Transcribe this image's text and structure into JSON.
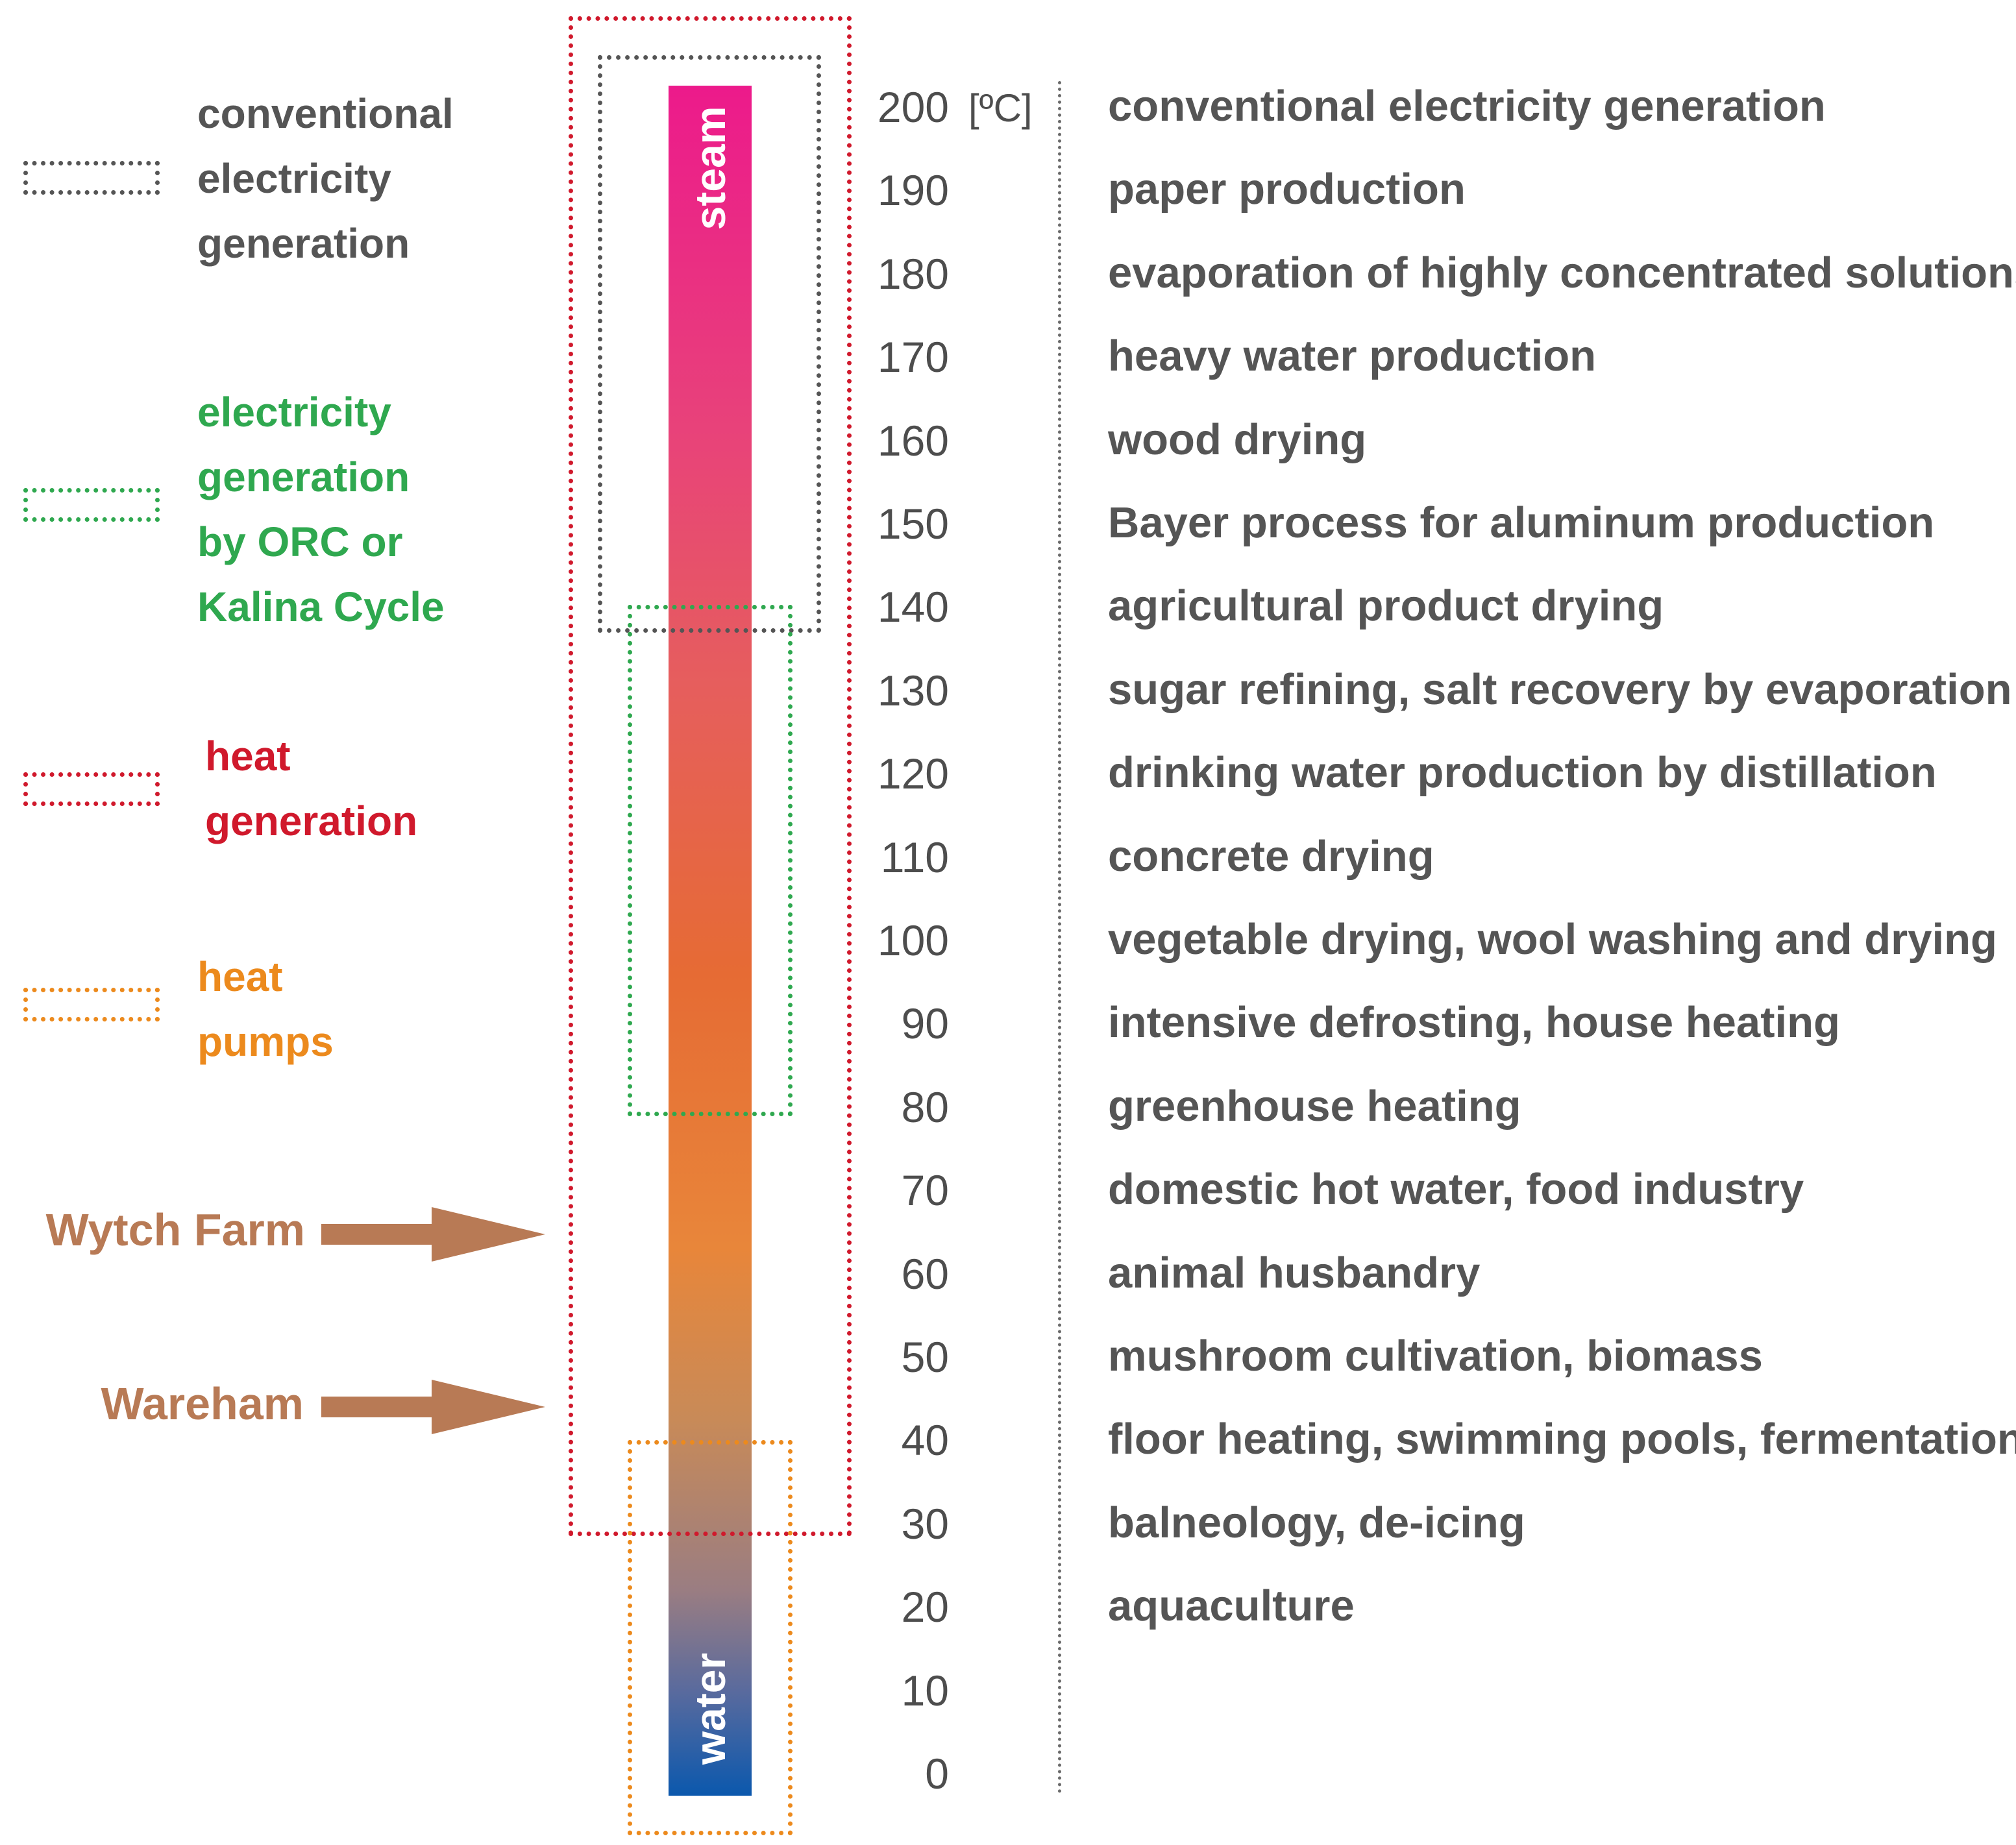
{
  "colors": {
    "conventional": "#555555",
    "orc": "#2fa84f",
    "heat": "#d0192c",
    "heat_pumps": "#ec8a1d",
    "site": "#b87a55",
    "text": "#555555"
  },
  "legend": [
    {
      "key": "conventional",
      "lines": [
        "conventional",
        "electricity",
        "generation"
      ]
    },
    {
      "key": "orc",
      "lines": [
        "electricity",
        "generation",
        "by ORC or",
        "Kalina Cycle"
      ]
    },
    {
      "key": "heat",
      "lines": [
        "heat",
        "generation"
      ]
    },
    {
      "key": "heat_pumps",
      "lines": [
        "heat",
        "pumps"
      ]
    }
  ],
  "sites": [
    {
      "name": "Wytch Farm",
      "temperature": 63
    },
    {
      "name": "Wareham",
      "temperature": 42
    }
  ],
  "bar": {
    "top_label": "steam",
    "bottom_label": "water"
  },
  "ranges": {
    "conventional": [
      135,
      200
    ],
    "orc": [
      80,
      145
    ],
    "heat": [
      40,
      200
    ],
    "heat_pumps": [
      0,
      40
    ]
  },
  "scale": {
    "unit": "[ºC]",
    "ticks": [
      "200",
      "190",
      "180",
      "170",
      "160",
      "150",
      "140",
      "130",
      "120",
      "110",
      "100",
      "90",
      "80",
      "70",
      "60",
      "50",
      "40",
      "30",
      "20",
      "10",
      "0"
    ]
  },
  "applications": [
    "conventional electricity generation",
    "paper production",
    "evaporation of highly concentrated solutions",
    "heavy water production",
    "wood drying",
    "Bayer process for aluminum production",
    "agricultural product drying",
    "sugar refining, salt recovery by evaporation",
    "drinking water production by distillation",
    "concrete  drying",
    "vegetable drying, wool washing and drying",
    "intensive defrosting, house heating",
    "greenhouse heating",
    "domestic hot water, food industry",
    "animal husbandry",
    "mushroom cultivation, biomass",
    "floor heating, swimming pools, fermentation",
    "balneology, de-icing",
    "aquaculture"
  ]
}
